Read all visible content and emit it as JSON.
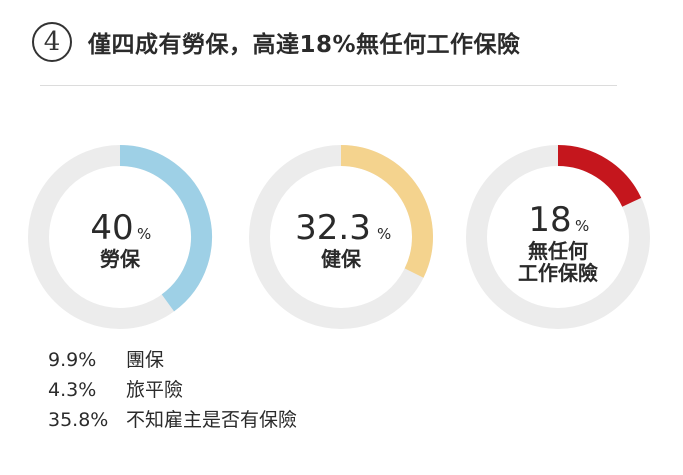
{
  "header": {
    "number": "4",
    "title": "僅四成有勞保，高達18%無任何工作保險"
  },
  "chart_data": {
    "type": "pie",
    "title": "僅四成有勞保，高達18%無任何工作保險",
    "ring_track_color": "#ececec",
    "charts": [
      {
        "value": 40,
        "value_label": "40",
        "unit": "%",
        "label_lines": [
          "勞保"
        ],
        "color": "#9ed0e6"
      },
      {
        "value": 32.3,
        "value_label": "32.3",
        "unit": "%",
        "label_lines": [
          "健保"
        ],
        "color": "#f4d38e"
      },
      {
        "value": 18,
        "value_label": "18",
        "unit": "%",
        "label_lines": [
          "無任何",
          "工作保險"
        ],
        "color": "#c5161d"
      }
    ]
  },
  "legend": [
    {
      "pct": "9.9%",
      "label": "團保"
    },
    {
      "pct": "4.3%",
      "label": "旅平險"
    },
    {
      "pct": "35.8%",
      "label": "不知雇主是否有保險"
    }
  ]
}
